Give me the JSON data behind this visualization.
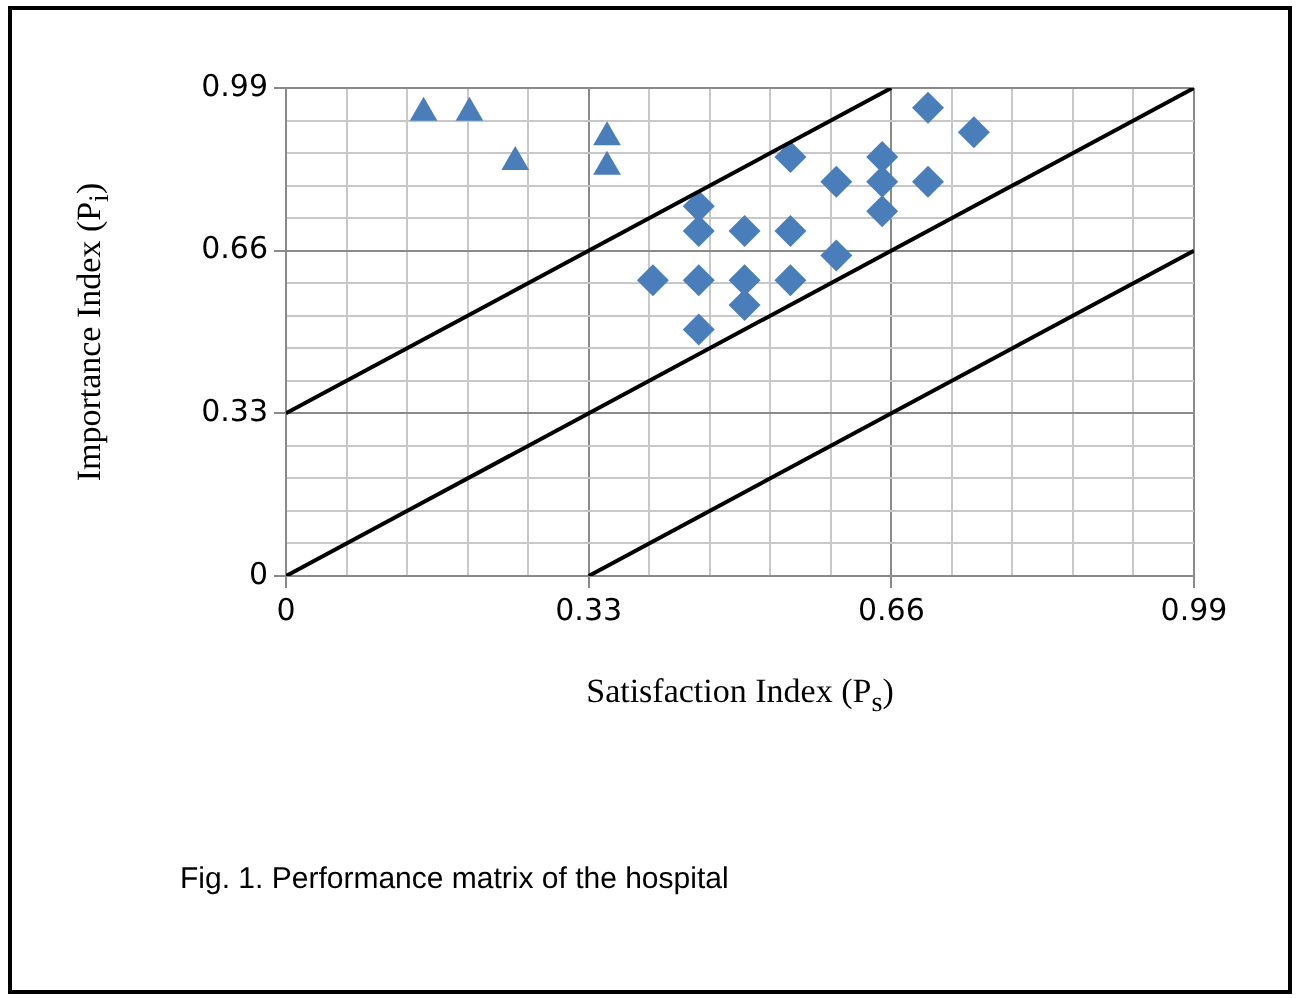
{
  "chart_data": {
    "type": "scatter",
    "xlabel": "Satisfaction Index (P$_{s}$)",
    "ylabel": "Importance Index (P$_{i}$)",
    "annotations": [
      "Fig. 1. Performance matrix of the hospital"
    ],
    "xlim": [
      0,
      0.99
    ],
    "ylim": [
      0,
      0.99
    ],
    "xticks": [
      0,
      {
        "value": 0.066,
        "label": null
      },
      {
        "value": 0.132,
        "label": null
      },
      {
        "value": 0.198,
        "label": null
      },
      {
        "value": 0.264,
        "label": null
      },
      0.33,
      {
        "value": 0.396,
        "label": null
      },
      {
        "value": 0.462,
        "label": null
      },
      {
        "value": 0.528,
        "label": null
      },
      {
        "value": 0.594,
        "label": null
      },
      0.66,
      {
        "value": 0.726,
        "label": null
      },
      {
        "value": 0.792,
        "label": null
      },
      {
        "value": 0.858,
        "label": null
      },
      {
        "value": 0.924,
        "label": null
      },
      0.99
    ],
    "yticks": [
      0,
      {
        "value": 0.066,
        "label": null
      },
      {
        "value": 0.132,
        "label": null
      },
      {
        "value": 0.198,
        "label": null
      },
      {
        "value": 0.264,
        "label": null
      },
      0.33,
      {
        "value": 0.396,
        "label": null
      },
      {
        "value": 0.462,
        "label": null
      },
      {
        "value": 0.528,
        "label": null
      },
      {
        "value": 0.594,
        "label": null
      },
      0.66,
      {
        "value": 0.726,
        "label": null
      },
      {
        "value": 0.792,
        "label": null
      },
      {
        "value": 0.858,
        "label": null
      },
      {
        "value": 0.924,
        "label": null
      },
      0.99
    ],
    "grid": true,
    "legend": false,
    "series": [
      {
        "type": "line",
        "color": "#000000",
        "marker": "none",
        "x": [
          0,
          0.66
        ],
        "values": [
          0.33,
          0.99
        ]
      },
      {
        "type": "line",
        "color": "#000000",
        "marker": "none",
        "x": [
          0,
          0.99
        ],
        "values": [
          0,
          0.99
        ]
      },
      {
        "type": "line",
        "color": "#000000",
        "marker": "none",
        "x": [
          0.33,
          0.99
        ],
        "values": [
          0,
          0.66
        ]
      },
      {
        "type": "scatter",
        "color": "#4a7ebb",
        "marker": "triangle",
        "x": [
          0.15,
          0.2,
          0.25,
          0.35,
          0.35
        ],
        "values": [
          0.94,
          0.94,
          0.84,
          0.89,
          0.83
        ]
      },
      {
        "type": "scatter",
        "color": "#4a7ebb",
        "marker": "diamond",
        "x": [
          0.7,
          0.75,
          0.55,
          0.65,
          0.6,
          0.65,
          0.7,
          0.65,
          0.45,
          0.45,
          0.5,
          0.55,
          0.6,
          0.4,
          0.45,
          0.5,
          0.55,
          0.5,
          0.45
        ],
        "values": [
          0.95,
          0.9,
          0.85,
          0.85,
          0.8,
          0.8,
          0.8,
          0.74,
          0.75,
          0.7,
          0.7,
          0.7,
          0.65,
          0.6,
          0.6,
          0.6,
          0.6,
          0.55,
          0.5
        ]
      }
    ]
  }
}
